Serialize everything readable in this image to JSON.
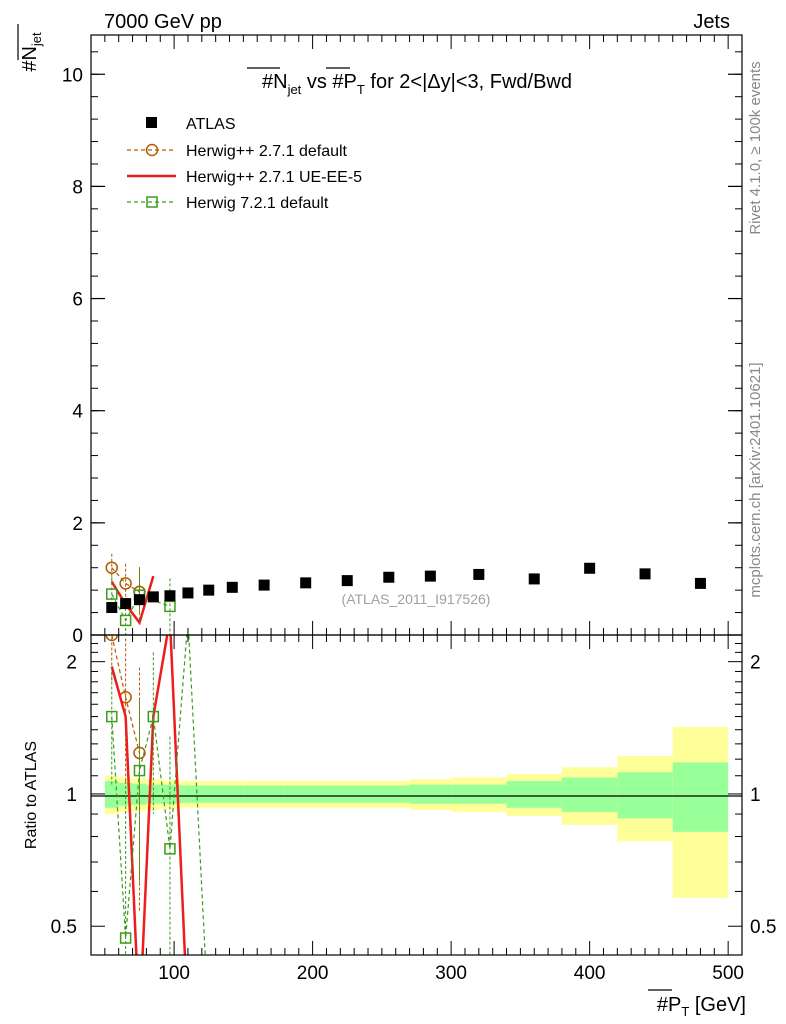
{
  "header": {
    "left": "7000 GeV pp",
    "right": "Jets"
  },
  "side_labels": {
    "rivet": "Rivet 4.1.0, ≥ 100k events",
    "mcplots": "mcplots.cern.ch [arXiv:2401.10621]"
  },
  "colors": {
    "atlas": "#000000",
    "herwigpp_default": "#b35900",
    "herwigpp_ueee5": "#ee1c1c",
    "herwig7_default": "#3a9c1a",
    "band_inner": "#99ff99",
    "band_outer": "#ffff99"
  },
  "chart_data": {
    "type": "scatter",
    "title": "#N_jet vs #P_T for 2<|Δy|<3, Fwd/Bwd",
    "title_parts": {
      "a": "#N",
      "a_sub": "jet",
      "b": " vs #P",
      "b_sub": "T",
      "c": " for 2<|Δy|<3, Fwd/Bwd"
    },
    "ylabel": {
      "main": "#N",
      "sub": "jet"
    },
    "xlabel": {
      "main": "#P",
      "sub": "T",
      "unit": " [GeV]"
    },
    "ratio_ylabel": "Ratio to ATLAS",
    "watermark": "(ATLAS_2011_I917526)",
    "xlim": [
      40,
      510
    ],
    "ylim": [
      0,
      10.7
    ],
    "ratio_ylim": [
      0.43,
      2.3
    ],
    "x_ticks": [
      {
        "v": 100,
        "label": "100"
      },
      {
        "v": 200,
        "label": "200"
      },
      {
        "v": 300,
        "label": "300"
      },
      {
        "v": 400,
        "label": "400"
      },
      {
        "v": 500,
        "label": "500"
      }
    ],
    "y_ticks": [
      {
        "v": 0,
        "label": "0"
      },
      {
        "v": 2,
        "label": "2"
      },
      {
        "v": 4,
        "label": "4"
      },
      {
        "v": 6,
        "label": "6"
      },
      {
        "v": 8,
        "label": "8"
      },
      {
        "v": 10,
        "label": "10"
      }
    ],
    "ratio_ticks": [
      {
        "v": 0.5,
        "label": "0.5"
      },
      {
        "v": 1,
        "label": "1"
      },
      {
        "v": 2,
        "label": "2"
      }
    ],
    "legend": [
      {
        "key": "atlas",
        "label": "ATLAS"
      },
      {
        "key": "herwigpp_default",
        "label": "Herwig++ 2.7.1 default"
      },
      {
        "key": "herwigpp_ueee5",
        "label": "Herwig++ 2.7.1 UE-EE-5"
      },
      {
        "key": "herwig7_default",
        "label": "Herwig 7.2.1 default"
      }
    ],
    "data": {
      "x": [
        55,
        65,
        75,
        85,
        97,
        110,
        125,
        142,
        165,
        195,
        225,
        255,
        285,
        320,
        360,
        400,
        440,
        480
      ],
      "y": [
        0.49,
        0.56,
        0.63,
        0.68,
        0.7,
        0.75,
        0.8,
        0.85,
        0.89,
        0.93,
        0.97,
        1.03,
        1.05,
        1.08,
        1.0,
        1.19,
        1.09,
        0.92
      ],
      "band_edges": [
        50,
        60,
        70,
        80,
        90,
        105,
        115,
        135,
        150,
        180,
        210,
        240,
        270,
        300,
        340,
        380,
        420,
        460,
        500
      ],
      "ratio_inner": [
        0.07,
        0.06,
        0.055,
        0.05,
        0.05,
        0.045,
        0.045,
        0.045,
        0.045,
        0.045,
        0.045,
        0.045,
        0.05,
        0.05,
        0.07,
        0.09,
        0.12,
        0.18
      ],
      "ratio_outer": [
        0.1,
        0.09,
        0.085,
        0.08,
        0.075,
        0.07,
        0.07,
        0.07,
        0.07,
        0.07,
        0.07,
        0.07,
        0.08,
        0.09,
        0.11,
        0.15,
        0.22,
        0.42
      ]
    },
    "series": [
      {
        "key": "herwigpp_default",
        "name": "Herwig++ 2.7.1 default",
        "style": "dashed",
        "marker": "circle",
        "x": [
          55,
          65,
          75
        ],
        "y": [
          1.2,
          0.92,
          0.77
        ],
        "err_up": [
          0.25,
          0.35,
          0.4
        ],
        "err_dn": [
          0.25,
          0.35,
          0.4
        ],
        "ratio": [
          2.3,
          1.66,
          1.24
        ],
        "ratio_err": [
          0.5,
          0.6,
          0.7
        ]
      },
      {
        "key": "herwigpp_ueee5",
        "name": "Herwig++ 2.7.1 UE-EE-5",
        "style": "solid",
        "marker": "none",
        "x": [
          55,
          65,
          75,
          85,
          97,
          110
        ],
        "y": [
          0.95,
          0.55,
          0.22,
          1.05,
          null,
          null
        ],
        "err_up": [],
        "err_dn": [],
        "ratio": [
          1.95,
          1.5,
          0.3,
          1.5,
          2.5,
          0.3
        ],
        "ratio_err": [
          0.35,
          0.35,
          0.3,
          0.3,
          0.3,
          0.3
        ]
      },
      {
        "key": "herwig7_default",
        "name": "Herwig 7.2.1 default",
        "style": "dashed",
        "marker": "square",
        "x": [
          55,
          65,
          75,
          85,
          97,
          110,
          125
        ],
        "y": [
          0.73,
          0.26,
          0.71,
          null,
          0.51,
          null,
          null
        ],
        "err_up": [
          0.3,
          0.4,
          0.5,
          0.0,
          0.5,
          0.0,
          0.0
        ],
        "err_dn": [
          0.3,
          0.26,
          0.5,
          0.0,
          0.51,
          0.0,
          0.0
        ],
        "ratio": [
          1.5,
          0.47,
          1.13,
          1.5,
          0.75,
          2.5,
          0.3
        ],
        "ratio_err": [
          0.45,
          0.6,
          0.5,
          0.6,
          0.6,
          0.3,
          0.3
        ]
      }
    ]
  }
}
